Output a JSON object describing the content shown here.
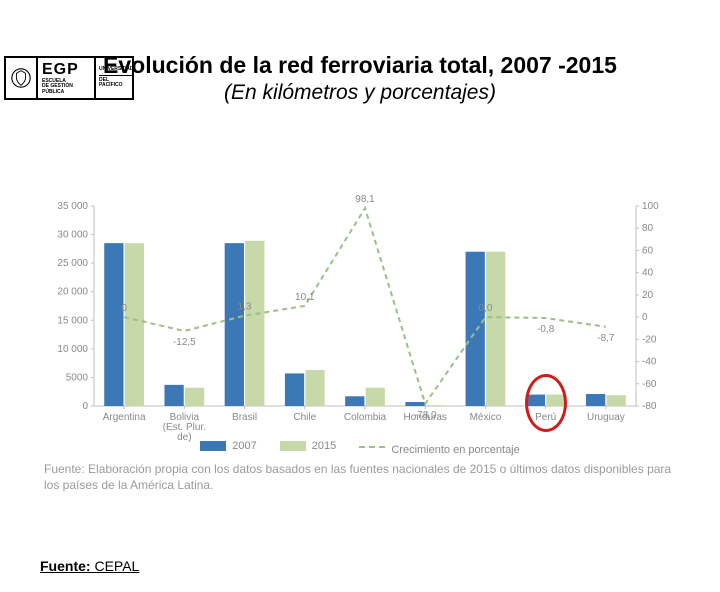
{
  "logo": {
    "acronym": "EGP",
    "line1": "ESCUELA",
    "line2": "DE GESTIÓN",
    "line3": "PÚBLICA",
    "rLine1": "UNIVERSIDAD",
    "rLine2": "DEL PACÍFICO"
  },
  "title": "Evolución de la red ferroviaria total, 2007 -2015",
  "subtitle": "(En kilómetros y porcentajes)",
  "chart": {
    "type": "bar+line",
    "categories": [
      "Argentina",
      "Bolivia\n(Est. Plur.\nde)",
      "Brasil",
      "Chile",
      "Colombia",
      "Honduras",
      "México",
      "Perú",
      "Uruguay"
    ],
    "series": {
      "s2007": {
        "label": "2007",
        "color": "#3b78b5",
        "values": [
          28500,
          3700,
          28500,
          5700,
          1700,
          700,
          27000,
          2000,
          2100
        ]
      },
      "s2015": {
        "label": "2015",
        "color": "#c7d9a8",
        "values": [
          28500,
          3200,
          28900,
          6300,
          3200,
          150,
          27000,
          2000,
          1900
        ]
      },
      "growth": {
        "label": "Crecimiento en porcentaje",
        "color": "#9cbf8a",
        "dash": "5,4",
        "values": [
          0,
          -12.5,
          1.3,
          10.1,
          98.1,
          -78.0,
          0.0,
          -0.8,
          -8.7
        ],
        "showLabels": [
          "0",
          "-12,5",
          "1,3",
          "10,1",
          "98,1",
          "-78,0",
          "0,0",
          "-0,8",
          "-8,7"
        ]
      }
    },
    "leftAxis": {
      "min": 0,
      "max": 35000,
      "step": 5000,
      "color": "#bfbfbf"
    },
    "rightAxis": {
      "min": -80,
      "max": 100,
      "step": 20,
      "color": "#bfbfbf"
    },
    "plot": {
      "background": "#ffffff",
      "gridColor": "#d9d9d9",
      "barWidth": 0.32,
      "barGap": 0.02,
      "tickFontSize": 10,
      "labelFontSize": 10
    },
    "legend": {
      "items": [
        "s2007",
        "s2015",
        "growth"
      ]
    },
    "highlightCircle": {
      "category": "Perú",
      "color": "#d21c1c",
      "width": 42,
      "height": 58
    }
  },
  "sourceNote": "Fuente: Elaboración propia con los datos basados en las fuentes nacionales de 2015 o últimos datos disponibles para los países de la América Latina.",
  "fuente": {
    "label": "Fuente:",
    "value": " CEPAL"
  }
}
